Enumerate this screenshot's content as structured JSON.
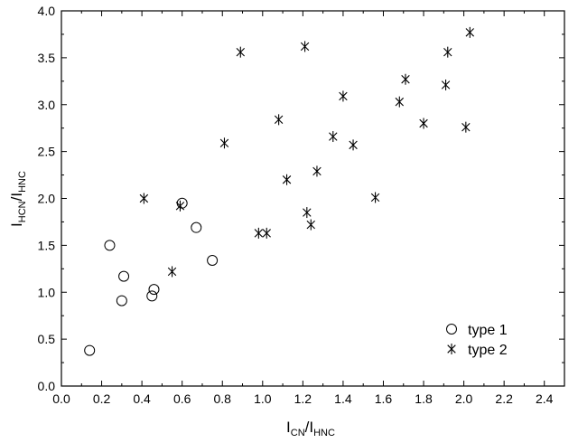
{
  "chart_data": {
    "type": "scatter",
    "title": "",
    "xlabel": {
      "main": "I",
      "sub": "CN",
      "sep": "/I",
      "sub2": "HNC"
    },
    "ylabel": {
      "main": "I",
      "sub": "HCN",
      "sep": "/I",
      "sub2": "HNC"
    },
    "xlim": [
      0.0,
      2.5
    ],
    "ylim": [
      0.0,
      4.0
    ],
    "x_ticks": [
      "0.0",
      "0.2",
      "0.4",
      "0.6",
      "0.8",
      "1.0",
      "1.2",
      "1.4",
      "1.6",
      "1.8",
      "2.0",
      "2.2",
      "2.4"
    ],
    "x_tick_values": [
      0,
      0.2,
      0.4,
      0.6,
      0.8,
      1.0,
      1.2,
      1.4,
      1.6,
      1.8,
      2.0,
      2.2,
      2.4
    ],
    "y_ticks": [
      "0.0",
      "0.5",
      "1.0",
      "1.5",
      "2.0",
      "2.5",
      "3.0",
      "3.5",
      "4.0"
    ],
    "y_tick_values": [
      0,
      0.5,
      1.0,
      1.5,
      2.0,
      2.5,
      3.0,
      3.5,
      4.0
    ],
    "grid": false,
    "legend_position": "bottom-right",
    "series": [
      {
        "name": "type 1",
        "marker": "circle",
        "points": [
          [
            0.14,
            0.38
          ],
          [
            0.24,
            1.5
          ],
          [
            0.3,
            0.91
          ],
          [
            0.31,
            1.17
          ],
          [
            0.45,
            0.96
          ],
          [
            0.46,
            1.03
          ],
          [
            0.6,
            1.95
          ],
          [
            0.67,
            1.69
          ],
          [
            0.75,
            1.34
          ]
        ]
      },
      {
        "name": "type 2",
        "marker": "asterisk",
        "points": [
          [
            0.41,
            2.0
          ],
          [
            0.55,
            1.22
          ],
          [
            0.59,
            1.92
          ],
          [
            0.81,
            2.59
          ],
          [
            0.89,
            3.56
          ],
          [
            0.98,
            1.63
          ],
          [
            1.02,
            1.63
          ],
          [
            1.08,
            2.84
          ],
          [
            1.12,
            2.2
          ],
          [
            1.21,
            3.62
          ],
          [
            1.22,
            1.85
          ],
          [
            1.24,
            1.72
          ],
          [
            1.27,
            2.29
          ],
          [
            1.35,
            2.66
          ],
          [
            1.4,
            3.09
          ],
          [
            1.45,
            2.57
          ],
          [
            1.56,
            2.01
          ],
          [
            1.68,
            3.03
          ],
          [
            1.71,
            3.27
          ],
          [
            1.8,
            2.8
          ],
          [
            1.91,
            3.21
          ],
          [
            1.92,
            3.56
          ],
          [
            2.01,
            2.76
          ],
          [
            2.03,
            3.77
          ]
        ]
      }
    ]
  }
}
